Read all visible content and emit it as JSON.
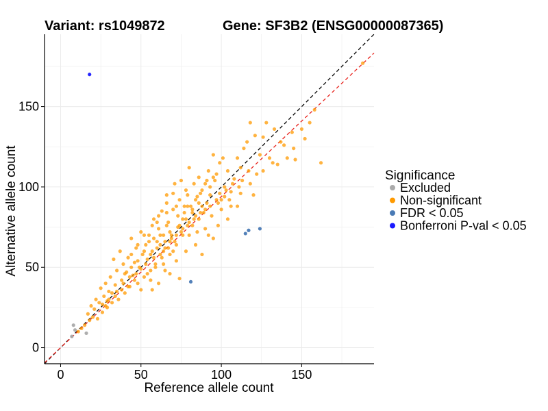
{
  "title_left": "Variant: rs1049872",
  "title_right": "Gene: SF3B2 (ENSG00000087365)",
  "chart_data": {
    "type": "scatter",
    "xlabel": "Reference allele count",
    "ylabel": "Alternative allele count",
    "xlim": [
      -10,
      195
    ],
    "ylim": [
      -10,
      195
    ],
    "x_ticks": [
      0,
      50,
      100,
      150
    ],
    "y_ticks": [
      0,
      50,
      100,
      150
    ],
    "grid": true,
    "legend": {
      "title": "Significance",
      "placement": "right",
      "entries": [
        {
          "label": "Excluded",
          "color": "#aaaaaa"
        },
        {
          "label": "Non-significant",
          "color": "#ff9a00"
        },
        {
          "label": "FDR < 0.05",
          "color": "#4a7ab5"
        },
        {
          "label": "Bonferroni P-val < 0.05",
          "color": "#1a1aff"
        }
      ]
    },
    "reference_lines": [
      {
        "kind": "identity",
        "slope": 1,
        "intercept": 0,
        "color": "#000000",
        "dash": "dashed"
      },
      {
        "kind": "fit",
        "slope": 0.94,
        "intercept": 0,
        "color": "#e8211b",
        "dash": "dashed"
      }
    ],
    "series": [
      {
        "name": "Excluded",
        "color": "#aaaaaa",
        "points": [
          [
            8,
            14
          ],
          [
            16,
            9
          ],
          [
            9,
            11
          ],
          [
            7,
            7
          ]
        ]
      },
      {
        "name": "FDR < 0.05",
        "color": "#4a7ab5",
        "points": [
          [
            81,
            41
          ],
          [
            115,
            71
          ],
          [
            117,
            73
          ],
          [
            124,
            74
          ]
        ]
      },
      {
        "name": "Bonferroni P-val < 0.05",
        "color": "#1a1aff",
        "points": [
          [
            18,
            170
          ]
        ]
      },
      {
        "name": "Non-significant",
        "color": "#ff9a00",
        "points": [
          [
            188,
            177
          ],
          [
            162,
            115
          ],
          [
            158,
            148
          ],
          [
            150,
            136
          ],
          [
            145,
            124
          ],
          [
            141,
            118
          ],
          [
            139,
            126
          ],
          [
            135,
            114
          ],
          [
            133,
            136
          ],
          [
            128,
            140
          ],
          [
            126,
            131
          ],
          [
            124,
            120
          ],
          [
            121,
            132
          ],
          [
            118,
            140
          ],
          [
            116,
            128
          ],
          [
            114,
            124
          ],
          [
            112,
            112
          ],
          [
            110,
            118
          ],
          [
            108,
            105
          ],
          [
            106,
            97
          ],
          [
            104,
            110
          ],
          [
            102,
            100
          ],
          [
            100,
            92
          ],
          [
            99,
            115
          ],
          [
            97,
            108
          ],
          [
            95,
            120
          ],
          [
            93,
            95
          ],
          [
            91,
            104
          ],
          [
            90,
            86
          ],
          [
            88,
            98
          ],
          [
            86,
            106
          ],
          [
            84,
            92
          ],
          [
            82,
            84
          ],
          [
            80,
            112
          ],
          [
            79,
            95
          ],
          [
            77,
            88
          ],
          [
            76,
            80
          ],
          [
            74,
            92
          ],
          [
            73,
            75
          ],
          [
            71,
            102
          ],
          [
            70,
            86
          ],
          [
            69,
            68
          ],
          [
            67,
            78
          ],
          [
            66,
            95
          ],
          [
            65,
            62
          ],
          [
            64,
            70
          ],
          [
            63,
            85
          ],
          [
            62,
            58
          ],
          [
            61,
            74
          ],
          [
            60,
            66
          ],
          [
            59,
            52
          ],
          [
            58,
            80
          ],
          [
            57,
            60
          ],
          [
            56,
            48
          ],
          [
            55,
            70
          ],
          [
            54,
            55
          ],
          [
            53,
            64
          ],
          [
            52,
            44
          ],
          [
            51,
            58
          ],
          [
            50,
            72
          ],
          [
            49,
            50
          ],
          [
            48,
            40
          ],
          [
            47,
            62
          ],
          [
            46,
            53
          ],
          [
            45,
            45
          ],
          [
            44,
            68
          ],
          [
            43,
            38
          ],
          [
            42,
            56
          ],
          [
            41,
            47
          ],
          [
            40,
            34
          ],
          [
            39,
            52
          ],
          [
            38,
            42
          ],
          [
            37,
            60
          ],
          [
            36,
            30
          ],
          [
            35,
            48
          ],
          [
            34,
            39
          ],
          [
            33,
            55
          ],
          [
            32,
            28
          ],
          [
            31,
            44
          ],
          [
            30,
            35
          ],
          [
            29,
            25
          ],
          [
            28,
            40
          ],
          [
            27,
            32
          ],
          [
            26,
            22
          ],
          [
            25,
            37
          ],
          [
            24,
            28
          ],
          [
            23,
            18
          ],
          [
            22,
            30
          ],
          [
            21,
            24
          ],
          [
            20,
            19
          ],
          [
            19,
            26
          ],
          [
            18,
            17
          ],
          [
            17,
            21
          ],
          [
            15,
            14
          ],
          [
            13,
            12
          ],
          [
            11,
            10
          ],
          [
            61,
            40
          ],
          [
            57,
            36
          ],
          [
            65,
            48
          ],
          [
            72,
            54
          ],
          [
            78,
            60
          ],
          [
            84,
            64
          ],
          [
            92,
            70
          ],
          [
            98,
            76
          ],
          [
            74,
            43
          ],
          [
            68,
            46
          ],
          [
            88,
            58
          ],
          [
            95,
            68
          ],
          [
            104,
            80
          ],
          [
            110,
            88
          ],
          [
            66,
            76
          ],
          [
            70,
            60
          ],
          [
            76,
            70
          ],
          [
            82,
            76
          ],
          [
            86,
            80
          ],
          [
            90,
            74
          ],
          [
            58,
            68
          ],
          [
            62,
            70
          ],
          [
            52,
            60
          ],
          [
            48,
            54
          ],
          [
            44,
            50
          ],
          [
            40,
            46
          ],
          [
            56,
            42
          ],
          [
            50,
            36
          ],
          [
            64,
            52
          ],
          [
            68,
            58
          ],
          [
            72,
            64
          ],
          [
            80,
            70
          ],
          [
            85,
            72
          ],
          [
            94,
            82
          ],
          [
            100,
            86
          ],
          [
            106,
            88
          ],
          [
            112,
            96
          ],
          [
            118,
            102
          ],
          [
            122,
            108
          ],
          [
            130,
            118
          ],
          [
            137,
            128
          ],
          [
            144,
            134
          ],
          [
            146,
            117
          ],
          [
            152,
            130
          ],
          [
            155,
            140
          ],
          [
            120,
            95
          ],
          [
            126,
            110
          ],
          [
            132,
            115
          ],
          [
            60,
            78
          ],
          [
            55,
            66
          ],
          [
            66,
            84
          ],
          [
            72,
            88
          ],
          [
            78,
            98
          ],
          [
            83,
            102
          ],
          [
            87,
            96
          ],
          [
            92,
            110
          ],
          [
            96,
            104
          ],
          [
            101,
            118
          ],
          [
            46,
            42
          ],
          [
            42,
            38
          ],
          [
            38,
            36
          ],
          [
            34,
            32
          ],
          [
            30,
            30
          ],
          [
            28,
            26
          ],
          [
            26,
            27
          ],
          [
            54,
            46
          ],
          [
            59,
            50
          ],
          [
            63,
            56
          ],
          [
            67,
            62
          ],
          [
            71,
            66
          ],
          [
            75,
            72
          ],
          [
            79,
            76
          ],
          [
            83,
            80
          ],
          [
            89,
            84
          ],
          [
            91,
            90
          ],
          [
            97,
            92
          ],
          [
            103,
            98
          ],
          [
            107,
            102
          ],
          [
            113,
            104
          ],
          [
            117,
            110
          ],
          [
            44,
            58
          ],
          [
            48,
            64
          ],
          [
            52,
            70
          ],
          [
            57,
            76
          ],
          [
            61,
            82
          ],
          [
            66,
            90
          ],
          [
            70,
            96
          ],
          [
            75,
            104
          ],
          [
            79,
            88
          ],
          [
            86,
            90
          ],
          [
            93,
            100
          ],
          [
            99,
            96
          ],
          [
            105,
            92
          ],
          [
            111,
            100
          ],
          [
            64,
            60
          ],
          [
            68,
            72
          ],
          [
            73,
            82
          ],
          [
            77,
            84
          ],
          [
            81,
            88
          ],
          [
            85,
            94
          ],
          [
            90,
            102
          ],
          [
            95,
            106
          ],
          [
            60,
            62
          ],
          [
            56,
            58
          ],
          [
            53,
            52
          ],
          [
            50,
            49
          ],
          [
            47,
            46
          ],
          [
            43,
            44
          ],
          [
            39,
            40
          ],
          [
            35,
            35
          ],
          [
            32,
            34
          ],
          [
            29,
            29
          ],
          [
            68,
            66
          ],
          [
            72,
            70
          ],
          [
            76,
            74
          ],
          [
            80,
            78
          ],
          [
            84,
            82
          ],
          [
            88,
            88
          ],
          [
            62,
            64
          ],
          [
            58,
            56
          ],
          [
            65,
            66
          ],
          [
            69,
            70
          ],
          [
            74,
            76
          ],
          [
            78,
            80
          ],
          [
            82,
            86
          ],
          [
            87,
            84
          ],
          [
            93,
            88
          ],
          [
            98,
            90
          ],
          [
            102,
            94
          ]
        ]
      }
    ]
  }
}
